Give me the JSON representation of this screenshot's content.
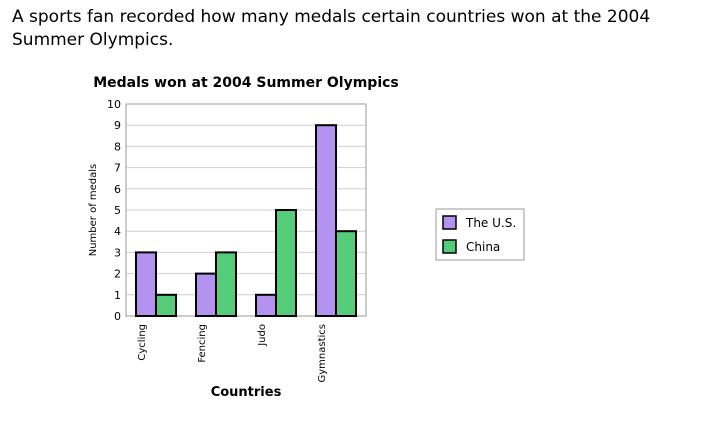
{
  "intro_text": "A sports fan recorded how many medals certain countries won at the 2004 Summer Olympics.",
  "chart_data": {
    "type": "bar",
    "title": "Medals won at 2004 Summer Olympics",
    "xlabel": "Countries",
    "ylabel": "Number of medals",
    "ylim": [
      0,
      10
    ],
    "yticks": [
      0,
      1,
      2,
      3,
      4,
      5,
      6,
      7,
      8,
      9,
      10
    ],
    "categories": [
      "Cycling",
      "Fencing",
      "Judo",
      "Gymnastics"
    ],
    "series": [
      {
        "name": "The U.S.",
        "color": "#b392f0",
        "values": [
          3,
          2,
          1,
          9
        ]
      },
      {
        "name": "China",
        "color": "#55cc7a",
        "values": [
          1,
          3,
          5,
          4
        ]
      }
    ],
    "grid": true,
    "legend_position": "right"
  }
}
